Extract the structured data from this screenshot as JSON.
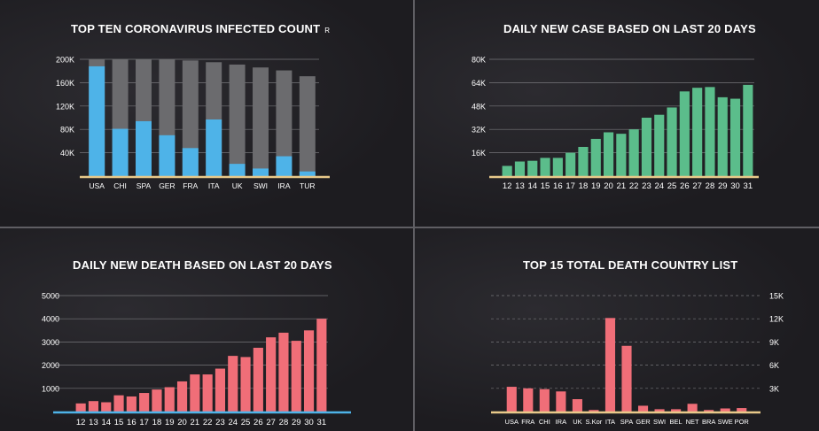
{
  "chart_data": [
    {
      "type": "bar",
      "title": "TOP TEN CORONAVIRUS INFECTED COUNT",
      "title_suffix": "R",
      "categories": [
        "USA",
        "CHI",
        "SPA",
        "GER",
        "FRA",
        "ITA",
        "UK",
        "SWI",
        "IRA",
        "TUR"
      ],
      "series": [
        {
          "values": [
            188000,
            81000,
            94000,
            70000,
            48000,
            97000,
            21000,
            13000,
            34000,
            8000
          ]
        },
        {
          "values": [
            200000,
            200000,
            200000,
            200000,
            198000,
            195000,
            191000,
            186000,
            181000,
            171000
          ]
        }
      ],
      "ylim": [
        0,
        200000
      ],
      "yticks": [
        40000,
        80000,
        120000,
        160000,
        200000
      ],
      "ytick_labels": [
        "40K",
        "80K",
        "120K",
        "160K",
        "200K"
      ],
      "grid": true,
      "colors": {
        "value": "#4eb3e8",
        "background": "#6b6b6e",
        "baseline": "#e8c98a"
      }
    },
    {
      "type": "bar",
      "title": "DAILY NEW CASE BASED ON LAST 20 DAYS",
      "categories": [
        "12",
        "13",
        "14",
        "15",
        "16",
        "17",
        "18",
        "19",
        "20",
        "21",
        "22",
        "23",
        "24",
        "25",
        "26",
        "27",
        "28",
        "29",
        "30",
        "31"
      ],
      "values": [
        7000,
        10000,
        10500,
        12500,
        12500,
        16000,
        20000,
        25500,
        30000,
        29000,
        32000,
        40000,
        42000,
        47000,
        58000,
        60500,
        61000,
        54000,
        53000,
        62500
      ],
      "ylim": [
        0,
        80000
      ],
      "yticks": [
        16000,
        32000,
        48000,
        64000,
        80000
      ],
      "ytick_labels": [
        "16K",
        "32K",
        "48K",
        "64K",
        "80K"
      ],
      "grid": true,
      "colors": {
        "bar": "#5bbd8b",
        "baseline": "#e8c98a"
      }
    },
    {
      "type": "bar",
      "title": "DAILY NEW DEATH BASED ON LAST 20 DAYS",
      "categories": [
        "12",
        "13",
        "14",
        "15",
        "16",
        "17",
        "18",
        "19",
        "20",
        "21",
        "22",
        "23",
        "24",
        "25",
        "26",
        "27",
        "28",
        "29",
        "30",
        "31"
      ],
      "values": [
        350,
        450,
        400,
        700,
        650,
        800,
        950,
        1050,
        1300,
        1600,
        1600,
        1850,
        2400,
        2350,
        2750,
        3200,
        3400,
        3050,
        3500,
        4000
      ],
      "ylim": [
        0,
        5000
      ],
      "yticks": [
        1000,
        2000,
        3000,
        4000,
        5000
      ],
      "ytick_labels": [
        "1000",
        "2000",
        "3000",
        "4000",
        "5000"
      ],
      "grid": true,
      "colors": {
        "bar": "#f06e78",
        "baseline": "#4eb3e8"
      }
    },
    {
      "type": "bar",
      "title": "TOP 15 TOTAL DEATH COUNTRY LIST",
      "categories": [
        "USA",
        "FRA",
        "CHI",
        "IRA",
        "UK",
        "S.Kor",
        "ITA",
        "SPA",
        "GER",
        "SWI",
        "BEL",
        "NET",
        "BRA",
        "SWE",
        "POR"
      ],
      "values": [
        3200,
        3000,
        2900,
        2600,
        1600,
        200,
        12100,
        8500,
        750,
        300,
        300,
        1000,
        200,
        400,
        450
      ],
      "ylim": [
        0,
        15000
      ],
      "yticks": [
        3000,
        6000,
        9000,
        12000,
        15000
      ],
      "ytick_labels": [
        "3K",
        "6K",
        "9K",
        "12K",
        "15K"
      ],
      "grid": true,
      "colors": {
        "bar": "#f06e78",
        "baseline": "#e8c98a"
      }
    }
  ]
}
